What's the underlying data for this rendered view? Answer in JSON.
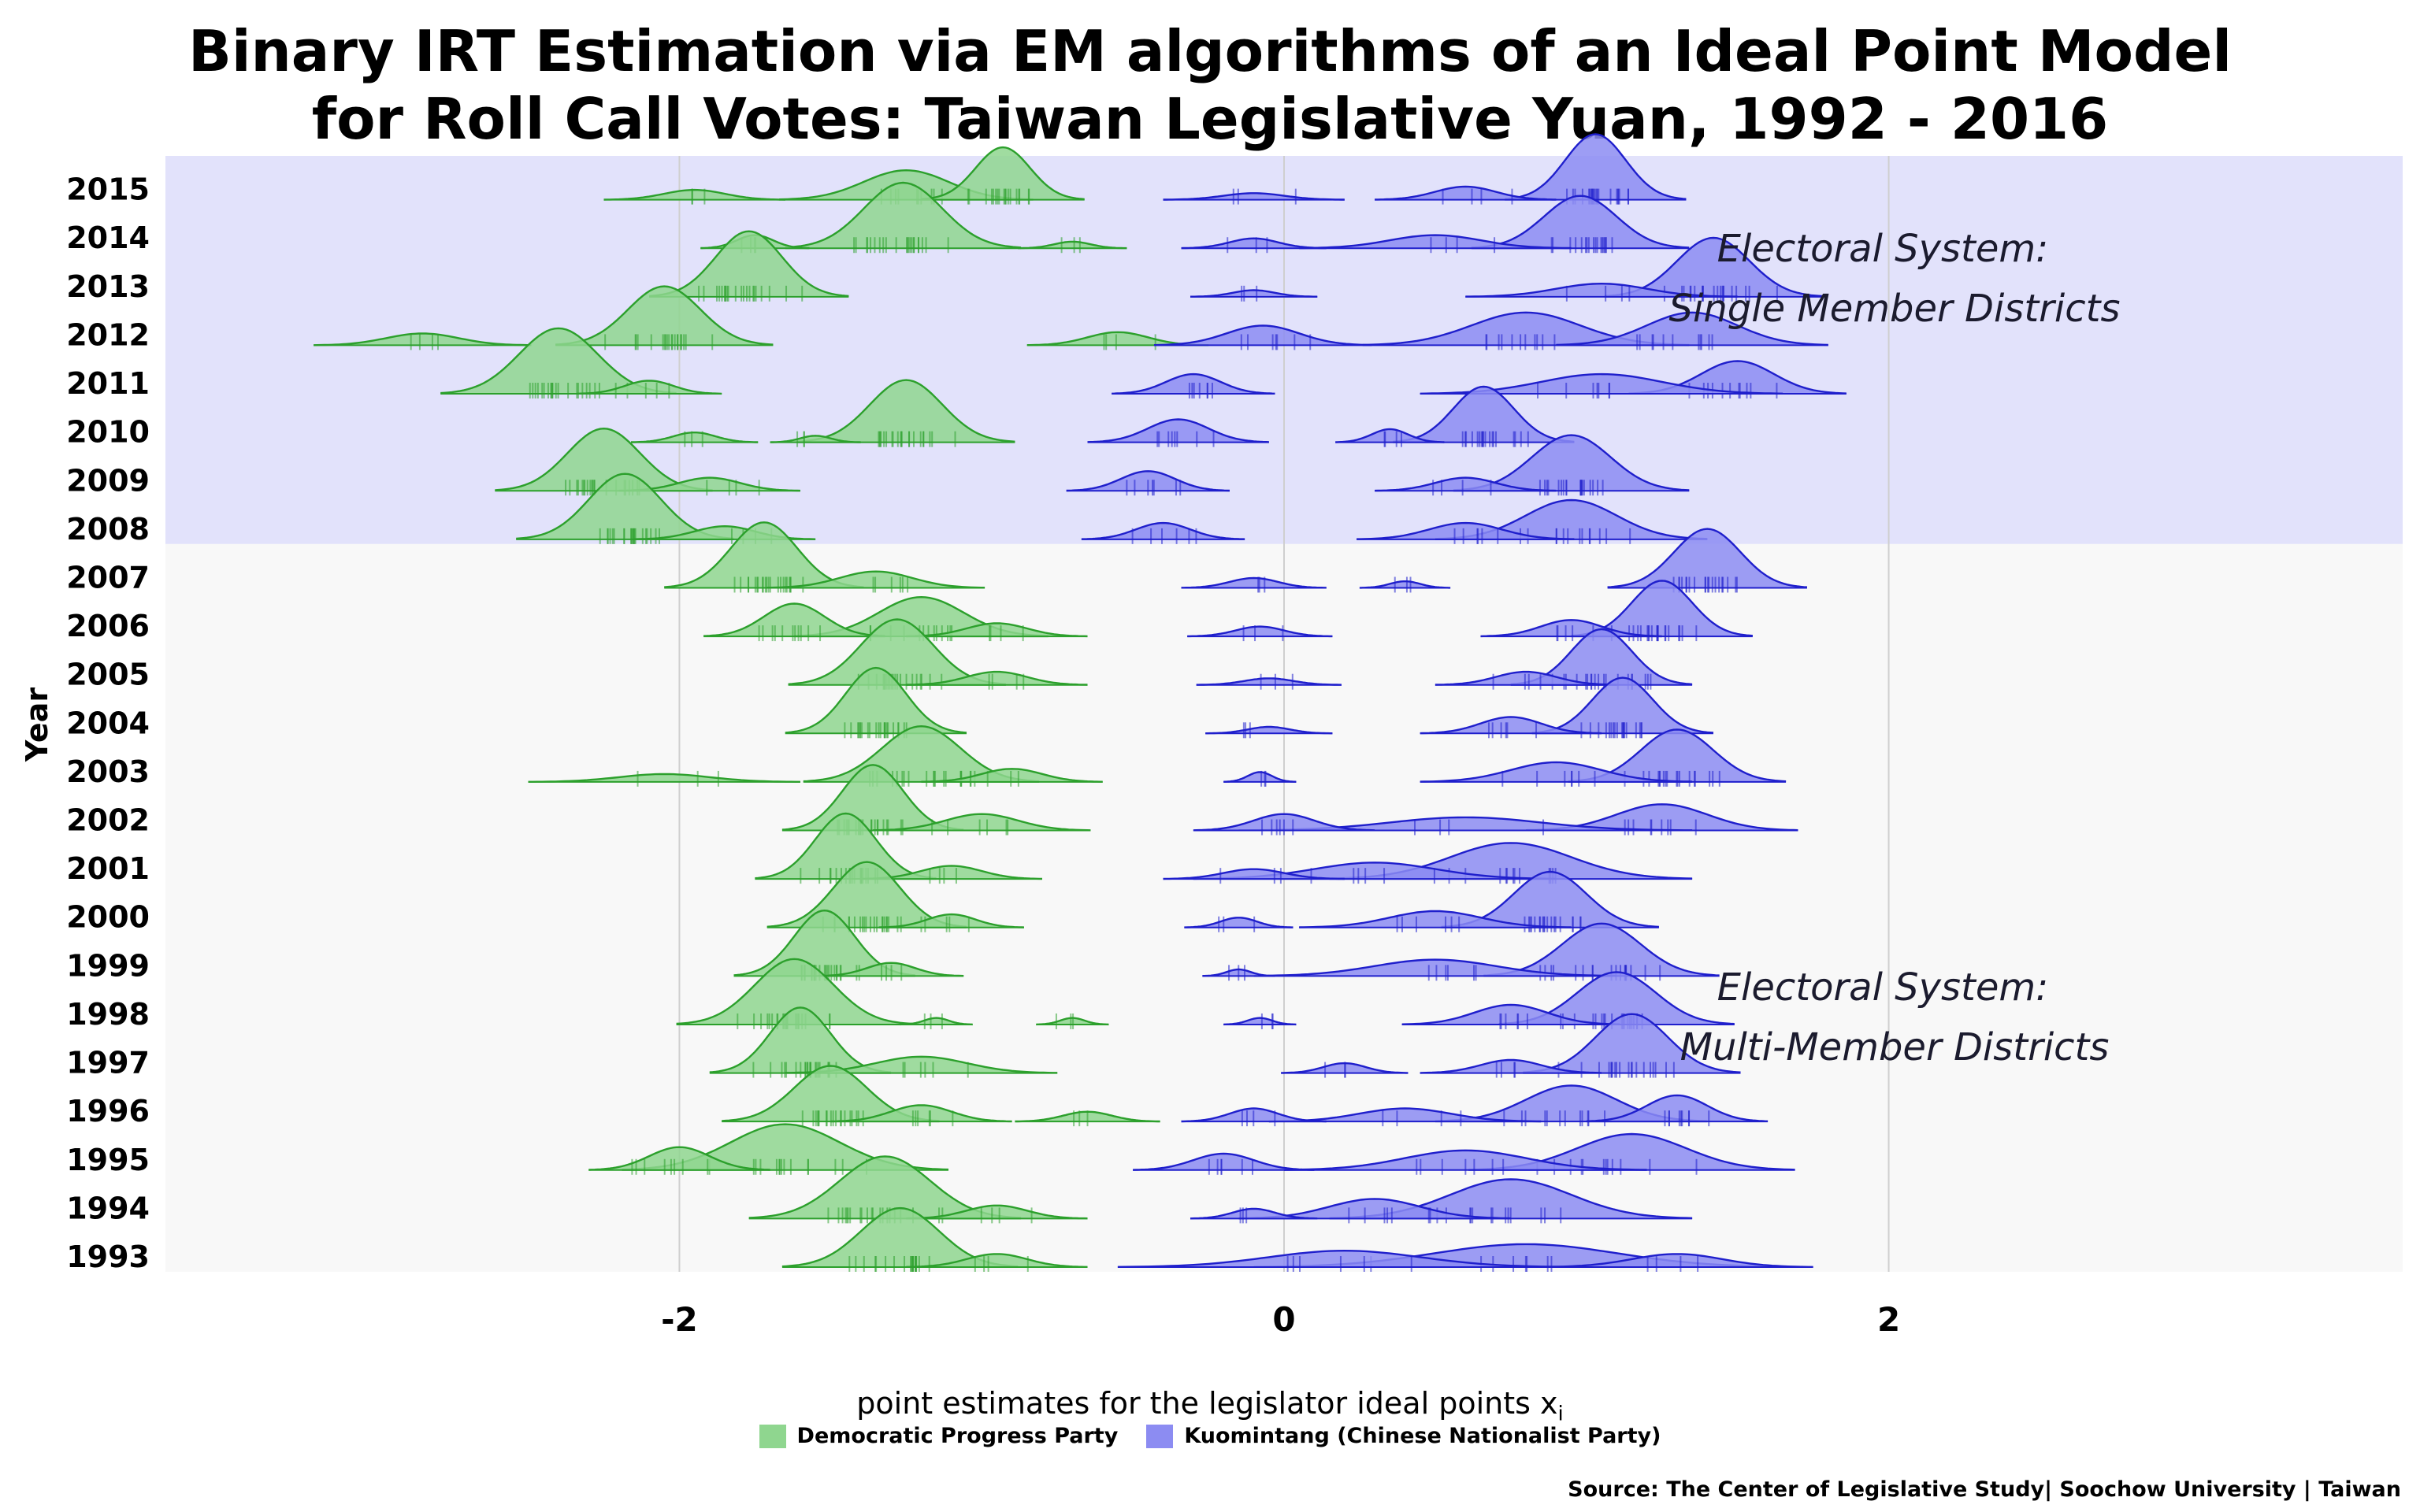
{
  "title_line1": "Binary IRT Estimation via EM algorithms  of an Ideal Point Model",
  "title_line2": "for Roll Call Votes: Taiwan Legislative Yuan, 1992 - 2016",
  "xlabel_main": "point estimates for the legislator ideal points x",
  "xlabel_sub": "i",
  "ylabel": "Year",
  "source": "Source: The Center of Legislative Study| Soochow University | Taiwan",
  "colors": {
    "dpp": "#2ca02c",
    "dpp_fill": "#8fd68f",
    "kmt": "#1f1fcc",
    "kmt_fill": "#8c8cf2",
    "smd_band": "#e2e2fb",
    "mmd_band": "#f8f8f8",
    "grid": "#cfcfcf"
  },
  "annotations": [
    {
      "line1": "Electoral System:",
      "line2": "Single Member Districts"
    },
    {
      "line1": "Electoral System:",
      "line2": "Multi-Member Districts"
    }
  ],
  "chart_data": {
    "type": "ridgeline",
    "xlim": [
      -3.7,
      3.7
    ],
    "xticks": [
      -2,
      0,
      2
    ],
    "xtick_labels": [
      "-2",
      "0",
      "2"
    ],
    "regimes": [
      {
        "name": "Single Member Districts",
        "years": [
          2008,
          2015
        ]
      },
      {
        "name": "Multi-Member Districts",
        "years": [
          1993,
          2007
        ]
      }
    ],
    "legend": [
      "Democratic Progress Party",
      "Kuomintang (Chinese Nationalist Party)"
    ],
    "years": [
      {
        "year": "2015",
        "dpp": [
          [
            -1.25,
            0.45,
            0.14
          ],
          [
            -0.93,
            0.8,
            0.09
          ],
          [
            -1.95,
            0.15,
            0.1
          ]
        ],
        "kmt": [
          [
            1.03,
            1.0,
            0.1
          ],
          [
            0.6,
            0.2,
            0.1
          ],
          [
            -0.1,
            0.1,
            0.1
          ]
        ]
      },
      {
        "year": "2014",
        "dpp": [
          [
            -1.26,
            1.0,
            0.13
          ],
          [
            -1.75,
            0.2,
            0.06
          ],
          [
            -0.7,
            0.1,
            0.06
          ]
        ],
        "kmt": [
          [
            0.98,
            0.8,
            0.12
          ],
          [
            0.5,
            0.2,
            0.15
          ],
          [
            -0.1,
            0.15,
            0.08
          ]
        ]
      },
      {
        "year": "2013",
        "dpp": [
          [
            -1.77,
            1.0,
            0.11
          ]
        ],
        "kmt": [
          [
            1.42,
            0.9,
            0.12
          ],
          [
            1.05,
            0.2,
            0.15
          ],
          [
            -0.1,
            0.1,
            0.07
          ]
        ]
      },
      {
        "year": "2012",
        "dpp": [
          [
            -2.05,
            0.9,
            0.12
          ],
          [
            -2.85,
            0.18,
            0.12
          ],
          [
            -0.55,
            0.2,
            0.1
          ]
        ],
        "kmt": [
          [
            0.8,
            0.5,
            0.18
          ],
          [
            1.35,
            0.5,
            0.15
          ],
          [
            -0.07,
            0.3,
            0.12
          ]
        ]
      },
      {
        "year": "2011",
        "dpp": [
          [
            -2.4,
            1.0,
            0.13
          ],
          [
            -2.1,
            0.2,
            0.08
          ]
        ],
        "kmt": [
          [
            1.5,
            0.5,
            0.12
          ],
          [
            1.05,
            0.3,
            0.2
          ],
          [
            -0.3,
            0.3,
            0.09
          ]
        ]
      },
      {
        "year": "2010",
        "dpp": [
          [
            -1.25,
            0.95,
            0.12
          ],
          [
            -1.95,
            0.15,
            0.07
          ],
          [
            -1.55,
            0.1,
            0.05
          ]
        ],
        "kmt": [
          [
            0.66,
            0.85,
            0.1
          ],
          [
            0.35,
            0.2,
            0.06
          ],
          [
            -0.35,
            0.35,
            0.1
          ]
        ]
      },
      {
        "year": "2009",
        "dpp": [
          [
            -2.25,
            0.95,
            0.12
          ],
          [
            -1.9,
            0.2,
            0.1
          ]
        ],
        "kmt": [
          [
            0.95,
            0.85,
            0.13
          ],
          [
            0.6,
            0.2,
            0.1
          ],
          [
            -0.45,
            0.3,
            0.09
          ]
        ]
      },
      {
        "year": "2008",
        "dpp": [
          [
            -2.18,
            1.0,
            0.12
          ],
          [
            -1.85,
            0.2,
            0.1
          ]
        ],
        "kmt": [
          [
            0.95,
            0.6,
            0.15
          ],
          [
            0.6,
            0.25,
            0.12
          ],
          [
            -0.4,
            0.25,
            0.09
          ]
        ]
      },
      {
        "year": "2007",
        "dpp": [
          [
            -1.72,
            1.0,
            0.11
          ],
          [
            -1.35,
            0.25,
            0.12
          ]
        ],
        "kmt": [
          [
            1.4,
            0.9,
            0.11
          ],
          [
            -0.1,
            0.15,
            0.08
          ],
          [
            0.4,
            0.1,
            0.05
          ]
        ]
      },
      {
        "year": "2006",
        "dpp": [
          [
            -1.2,
            0.6,
            0.14
          ],
          [
            -1.62,
            0.5,
            0.1
          ],
          [
            -0.95,
            0.2,
            0.1
          ]
        ],
        "kmt": [
          [
            1.25,
            0.85,
            0.1
          ],
          [
            0.95,
            0.25,
            0.1
          ],
          [
            -0.08,
            0.15,
            0.08
          ]
        ]
      },
      {
        "year": "2005",
        "dpp": [
          [
            -1.28,
            1.0,
            0.12
          ],
          [
            -0.95,
            0.2,
            0.1
          ]
        ],
        "kmt": [
          [
            1.05,
            0.85,
            0.1
          ],
          [
            0.8,
            0.2,
            0.1
          ],
          [
            -0.05,
            0.1,
            0.08
          ]
        ]
      },
      {
        "year": "2004",
        "dpp": [
          [
            -1.35,
            1.0,
            0.1
          ]
        ],
        "kmt": [
          [
            1.12,
            0.85,
            0.1
          ],
          [
            0.75,
            0.25,
            0.1
          ],
          [
            -0.05,
            0.1,
            0.07
          ]
        ]
      },
      {
        "year": "2003",
        "dpp": [
          [
            -1.2,
            0.85,
            0.13
          ],
          [
            -2.05,
            0.12,
            0.15
          ],
          [
            -0.9,
            0.2,
            0.1
          ]
        ],
        "kmt": [
          [
            1.3,
            0.8,
            0.12
          ],
          [
            0.9,
            0.3,
            0.15
          ],
          [
            -0.08,
            0.15,
            0.04
          ]
        ]
      },
      {
        "year": "2002",
        "dpp": [
          [
            -1.36,
            1.0,
            0.1
          ],
          [
            -1.0,
            0.25,
            0.12
          ]
        ],
        "kmt": [
          [
            1.25,
            0.4,
            0.15
          ],
          [
            0.6,
            0.2,
            0.25
          ],
          [
            0.0,
            0.25,
            0.1
          ]
        ]
      },
      {
        "year": "2001",
        "dpp": [
          [
            -1.45,
            1.0,
            0.1
          ],
          [
            -1.1,
            0.2,
            0.1
          ]
        ],
        "kmt": [
          [
            0.75,
            0.55,
            0.2
          ],
          [
            0.3,
            0.25,
            0.2
          ],
          [
            -0.1,
            0.15,
            0.1
          ]
        ]
      },
      {
        "year": "2000",
        "dpp": [
          [
            -1.38,
            1.0,
            0.11
          ],
          [
            -1.1,
            0.2,
            0.08
          ]
        ],
        "kmt": [
          [
            0.88,
            0.85,
            0.12
          ],
          [
            0.5,
            0.25,
            0.15
          ],
          [
            -0.15,
            0.15,
            0.06
          ]
        ]
      },
      {
        "year": "1999",
        "dpp": [
          [
            -1.52,
            1.0,
            0.1
          ],
          [
            -1.3,
            0.2,
            0.08
          ]
        ],
        "kmt": [
          [
            1.05,
            0.8,
            0.13
          ],
          [
            0.5,
            0.25,
            0.2
          ],
          [
            -0.15,
            0.1,
            0.04
          ]
        ]
      },
      {
        "year": "1998",
        "dpp": [
          [
            -1.62,
            1.0,
            0.13
          ],
          [
            -1.15,
            0.1,
            0.04
          ],
          [
            -0.7,
            0.1,
            0.04
          ]
        ],
        "kmt": [
          [
            1.1,
            0.8,
            0.13
          ],
          [
            0.75,
            0.3,
            0.12
          ],
          [
            -0.08,
            0.1,
            0.04
          ]
        ]
      },
      {
        "year": "1997",
        "dpp": [
          [
            -1.6,
            1.0,
            0.1
          ],
          [
            -1.2,
            0.25,
            0.15
          ]
        ],
        "kmt": [
          [
            1.15,
            0.9,
            0.12
          ],
          [
            0.75,
            0.2,
            0.1
          ],
          [
            0.2,
            0.15,
            0.07
          ]
        ]
      },
      {
        "year": "1996",
        "dpp": [
          [
            -1.5,
            0.85,
            0.12
          ],
          [
            -1.2,
            0.25,
            0.1
          ],
          [
            -0.65,
            0.15,
            0.08
          ]
        ],
        "kmt": [
          [
            0.95,
            0.55,
            0.15
          ],
          [
            1.3,
            0.4,
            0.1
          ],
          [
            0.4,
            0.2,
            0.15
          ],
          [
            -0.1,
            0.2,
            0.08
          ]
        ]
      },
      {
        "year": "1995",
        "dpp": [
          [
            -1.65,
            0.7,
            0.18
          ],
          [
            -2.0,
            0.35,
            0.1
          ]
        ],
        "kmt": [
          [
            1.15,
            0.55,
            0.18
          ],
          [
            0.6,
            0.3,
            0.2
          ],
          [
            -0.2,
            0.25,
            0.1
          ]
        ]
      },
      {
        "year": "1994",
        "dpp": [
          [
            -1.32,
            0.95,
            0.15
          ],
          [
            -0.95,
            0.2,
            0.1
          ]
        ],
        "kmt": [
          [
            0.75,
            0.6,
            0.2
          ],
          [
            0.3,
            0.3,
            0.15
          ],
          [
            -0.1,
            0.15,
            0.07
          ]
        ]
      },
      {
        "year": "1993",
        "dpp": [
          [
            -1.27,
            0.9,
            0.13
          ],
          [
            -0.95,
            0.2,
            0.1
          ]
        ],
        "kmt": [
          [
            0.8,
            0.35,
            0.3
          ],
          [
            0.2,
            0.25,
            0.25
          ],
          [
            1.3,
            0.2,
            0.15
          ]
        ]
      }
    ]
  }
}
